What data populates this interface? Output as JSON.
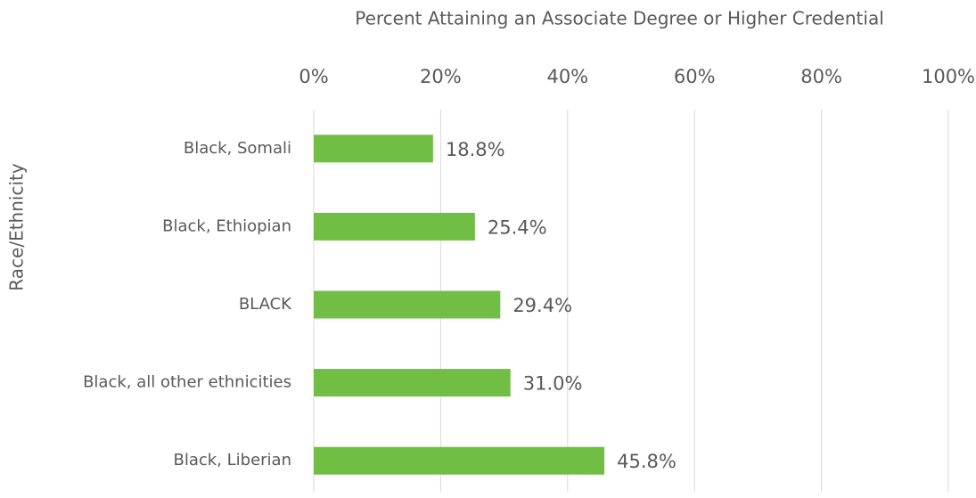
{
  "chart_data": {
    "type": "bar",
    "orientation": "horizontal",
    "title": "Percent Attaining an Associate Degree or Higher Credential",
    "y_label": "Race/Ethnicity",
    "categories": [
      "Black, Somali",
      "Black, Ethiopian",
      "BLACK",
      "Black, all other ethnicities",
      "Black, Liberian"
    ],
    "values": [
      18.8,
      25.4,
      29.4,
      31.0,
      45.8
    ],
    "value_labels": [
      "18.8%",
      "25.4%",
      "29.4%",
      "31.0%",
      "45.8%"
    ],
    "color": "#70bf44",
    "xlim": [
      0,
      100
    ],
    "xticks": [
      {
        "value": 0,
        "label": "0%"
      },
      {
        "value": 20,
        "label": "20%"
      },
      {
        "value": 40,
        "label": "40%"
      },
      {
        "value": 60,
        "label": "60%"
      },
      {
        "value": 80,
        "label": "80%"
      },
      {
        "value": 100,
        "label": "100%"
      }
    ],
    "grid": true
  }
}
